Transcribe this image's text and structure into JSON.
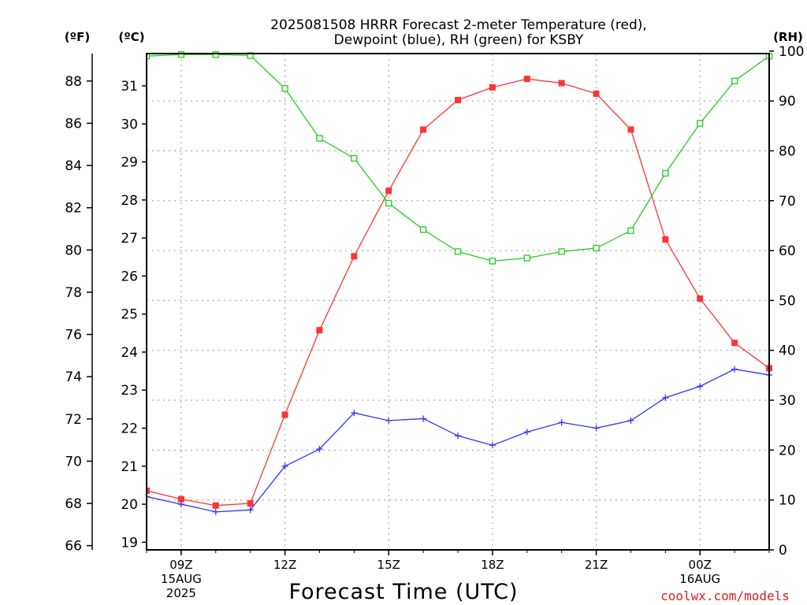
{
  "chart_data": {
    "type": "line",
    "title_line1": "2025081508 HRRR Forecast 2-meter Temperature (red),",
    "title_line2": "Dewpoint (blue), RH (green) for KSBY",
    "xlabel": "Forecast Time (UTC)",
    "watermark": "coolwx.com/models",
    "unit_f": "(ºF)",
    "unit_c": "(ºC)",
    "unit_rh": "(RH)",
    "grid": true,
    "x_hours": [
      8,
      9,
      10,
      11,
      12,
      13,
      14,
      15,
      16,
      17,
      18,
      19,
      20,
      21,
      22,
      23,
      24,
      25,
      26
    ],
    "x_ticks": [
      {
        "hour": 9,
        "lines": [
          "09Z",
          "15AUG",
          "2025"
        ]
      },
      {
        "hour": 12,
        "lines": [
          "12Z"
        ]
      },
      {
        "hour": 15,
        "lines": [
          "15Z"
        ]
      },
      {
        "hour": 18,
        "lines": [
          "18Z"
        ]
      },
      {
        "hour": 21,
        "lines": [
          "21Z"
        ]
      },
      {
        "hour": 24,
        "lines": [
          "00Z",
          "16AUG"
        ]
      }
    ],
    "y_left_f": {
      "ticks": [
        "66",
        "68",
        "70",
        "72",
        "74",
        "76",
        "78",
        "80",
        "82",
        "84",
        "86",
        "88"
      ],
      "range": [
        65.8,
        89.3
      ]
    },
    "y_left_c": {
      "ticks": [
        "19",
        "20",
        "21",
        "22",
        "23",
        "24",
        "25",
        "26",
        "27",
        "28",
        "29",
        "30",
        "31"
      ],
      "range": [
        18.8,
        31.85
      ]
    },
    "y_right_rh": {
      "ticks": [
        "0",
        "10",
        "20",
        "30",
        "40",
        "50",
        "60",
        "70",
        "80",
        "90",
        "100"
      ],
      "range": [
        0,
        99.5
      ]
    },
    "series": [
      {
        "name": "Temperature",
        "unit": "F",
        "color": "#ff3333",
        "marker": "filled-square",
        "values": [
          68.6,
          68.2,
          67.9,
          68.0,
          72.2,
          76.2,
          79.7,
          82.8,
          85.7,
          87.1,
          87.7,
          88.1,
          87.9,
          87.4,
          85.7,
          80.5,
          77.7,
          75.6,
          74.4
        ]
      },
      {
        "name": "Dewpoint",
        "unit": "C",
        "color": "#3333ff",
        "marker": "plus",
        "values": [
          20.2,
          20.0,
          19.8,
          19.85,
          21.0,
          21.45,
          22.4,
          22.2,
          22.25,
          21.8,
          21.55,
          21.9,
          22.15,
          22.0,
          22.2,
          22.8,
          23.1,
          23.55,
          23.4
        ]
      },
      {
        "name": "RH",
        "unit": "%",
        "color": "#22cc22",
        "marker": "open-square",
        "values": [
          99,
          99.3,
          99.3,
          99.1,
          92.5,
          82.5,
          78.5,
          69.5,
          64.2,
          59.8,
          57.9,
          58.5,
          59.8,
          60.5,
          64,
          75.5,
          85.5,
          94,
          99
        ]
      }
    ]
  }
}
